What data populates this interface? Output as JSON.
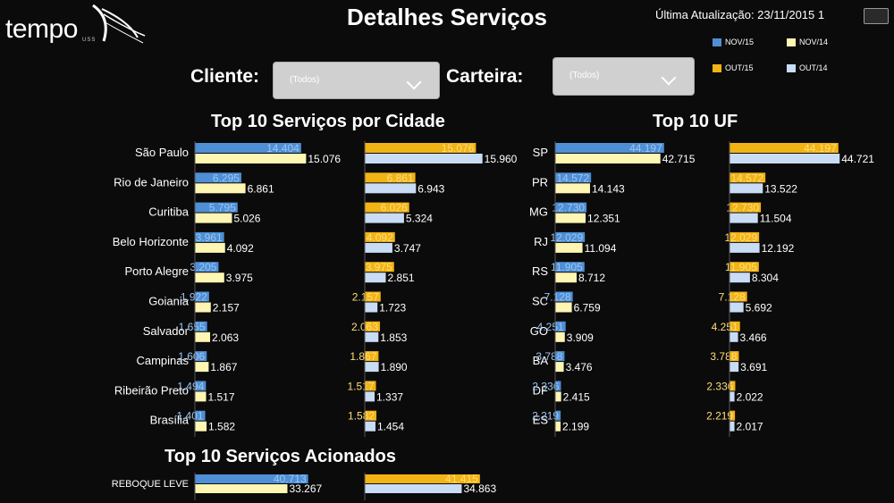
{
  "header": {
    "logo_text": "tempo",
    "logo_sub": "USS",
    "title": "Detalhes Serviços",
    "update_text": "Última Atualização: 23/11/2015 1"
  },
  "legend": [
    {
      "label": "NOV/15",
      "color": "#4e8fd6"
    },
    {
      "label": "NOV/14",
      "color": "#fff6b3"
    },
    {
      "label": "OUT/15",
      "color": "#f2b315"
    },
    {
      "label": "OUT/14",
      "color": "#c9dcf5"
    }
  ],
  "filters": {
    "cliente_label": "Cliente:",
    "cliente_value": "(Todos)",
    "carteira_label": "Carteira:",
    "carteira_value": "(Todos)"
  },
  "colors": {
    "nov15": "#4e8fd6",
    "nov14": "#fff6b3",
    "out15": "#f2b315",
    "out14": "#c9dcf5",
    "background": "#0b0b0b"
  },
  "chart_data": [
    {
      "type": "bar",
      "title": "Top 10 Serviços por Cidade",
      "categories": [
        "São Paulo",
        "Rio de Janeiro",
        "Curitiba",
        "Belo Horizonte",
        "Porto Alegre",
        "Goiania",
        "Salvador",
        "Campinas",
        "Ribeirão Preto",
        "Brasília"
      ],
      "series": [
        {
          "name": "NOV/15",
          "values": [
            14404,
            6295,
            5795,
            3961,
            3205,
            1922,
            1655,
            1606,
            1494,
            1401
          ]
        },
        {
          "name": "NOV/14",
          "values": [
            15076,
            6861,
            5026,
            4092,
            3975,
            2157,
            2063,
            1867,
            1517,
            1582
          ]
        },
        {
          "name": "OUT/15",
          "values": [
            15076,
            6861,
            6026,
            4092,
            3975,
            2157,
            2063,
            1867,
            1517,
            1582
          ]
        },
        {
          "name": "OUT/14",
          "values": [
            15960,
            6943,
            5324,
            3747,
            2851,
            1723,
            1853,
            1890,
            1337,
            1454
          ]
        }
      ],
      "labels": {
        "nov15": [
          "14.404",
          "6.295",
          "5.795",
          "3.961",
          "3.205",
          "1.922",
          "1.655",
          "1.606",
          "1.494",
          "1.401"
        ],
        "nov14": [
          "15.076",
          "6.861",
          "5.026",
          "4.092",
          "3.975",
          "2.157",
          "2.063",
          "1.867",
          "1.517",
          "1.582"
        ],
        "out15": [
          "15.076",
          "6.861",
          "6.026",
          "4.092",
          "3.975",
          "2.157",
          "2.063",
          "1.867",
          "1.517",
          "1.582"
        ],
        "out14": [
          "15.960",
          "6.943",
          "5.324",
          "3.747",
          "2.851",
          "1.723",
          "1.853",
          "1.890",
          "1.337",
          "1.454"
        ]
      },
      "max": 16000
    },
    {
      "type": "bar",
      "title": "Top 10 UF",
      "categories": [
        "SP",
        "PR",
        "MG",
        "RJ",
        "RS",
        "SC",
        "GO",
        "BA",
        "DF",
        "ES"
      ],
      "series": [
        {
          "name": "NOV/15",
          "values": [
            44197,
            14572,
            12730,
            12029,
            11905,
            7128,
            4251,
            3788,
            2336,
            2219
          ]
        },
        {
          "name": "NOV/14",
          "values": [
            42715,
            14143,
            12351,
            11094,
            8712,
            6759,
            3909,
            3476,
            2415,
            2199
          ]
        },
        {
          "name": "OUT/15",
          "values": [
            44197,
            14572,
            12730,
            12029,
            11905,
            7128,
            4251,
            3788,
            2336,
            2219
          ]
        },
        {
          "name": "OUT/14",
          "values": [
            44721,
            13522,
            11504,
            12192,
            8304,
            5692,
            3466,
            3691,
            2022,
            2017
          ]
        }
      ],
      "labels": {
        "nov15": [
          "44.197",
          "14.572",
          "12.730",
          "12.029",
          "11.905",
          "7.128",
          "4.251",
          "3.788",
          "2.336",
          "2.219"
        ],
        "nov14": [
          "42.715",
          "14.143",
          "12.351",
          "11.094",
          "8.712",
          "6.759",
          "3.909",
          "3.476",
          "2.415",
          "2.199"
        ],
        "out15": [
          "44.197",
          "14.572",
          "12.730",
          "12.029",
          "11.905",
          "7.128",
          "4.251",
          "3.788",
          "2.336",
          "2.219"
        ],
        "out14": [
          "44.721",
          "13.522",
          "11.504",
          "12.192",
          "8.304",
          "5.692",
          "3.466",
          "3.691",
          "2.022",
          "2.017"
        ]
      },
      "max": 45000
    },
    {
      "type": "bar",
      "title": "Top 10 Serviços Acionados",
      "categories": [
        "REBOQUE LEVE"
      ],
      "series": [
        {
          "name": "NOV/15",
          "values": [
            40713
          ]
        },
        {
          "name": "NOV/14",
          "values": [
            33267
          ]
        },
        {
          "name": "OUT/15",
          "values": [
            41415
          ]
        },
        {
          "name": "OUT/14",
          "values": [
            34863
          ]
        }
      ],
      "labels": {
        "nov15": [
          "40.713"
        ],
        "nov14": [
          "33.267"
        ],
        "out15": [
          "41.415"
        ],
        "out14": [
          "34.863"
        ]
      },
      "max": 45000
    }
  ]
}
